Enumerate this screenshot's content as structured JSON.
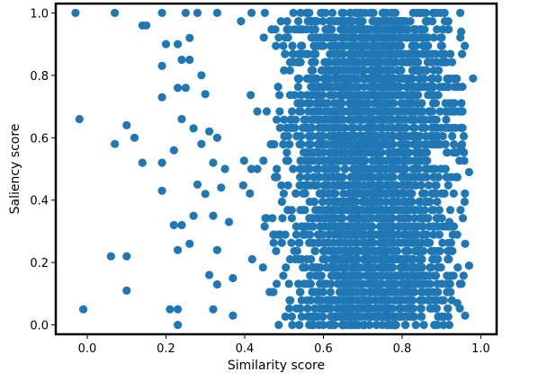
{
  "chart_data": {
    "type": "scatter",
    "title": "",
    "xlabel": "Similarity score",
    "ylabel": "Saliency score",
    "xlim": [
      -0.08,
      1.04
    ],
    "ylim": [
      -0.03,
      1.03
    ],
    "xticks": [
      "0.0",
      "0.2",
      "0.4",
      "0.6",
      "0.8",
      "1.0"
    ],
    "xtick_values": [
      0.0,
      0.2,
      0.4,
      0.6,
      0.8,
      1.0
    ],
    "yticks": [
      "0.0",
      "0.2",
      "0.4",
      "0.6",
      "0.8",
      "1.0"
    ],
    "ytick_values": [
      0.0,
      0.2,
      0.4,
      0.6,
      0.8,
      1.0
    ],
    "grid": false,
    "marker_color": "#1f77b4",
    "points": [
      [
        -0.03,
        1.0
      ],
      [
        0.07,
        1.0
      ],
      [
        0.19,
        1.0
      ],
      [
        0.25,
        1.0
      ],
      [
        0.28,
        1.0
      ],
      [
        0.33,
        1.0
      ],
      [
        0.14,
        0.96
      ],
      [
        0.15,
        0.96
      ],
      [
        0.2,
        0.9
      ],
      [
        0.23,
        0.9
      ],
      [
        0.26,
        0.92
      ],
      [
        0.19,
        0.83
      ],
      [
        0.24,
        0.85
      ],
      [
        0.26,
        0.85
      ],
      [
        0.29,
        0.8
      ],
      [
        0.19,
        0.73
      ],
      [
        0.23,
        0.76
      ],
      [
        0.25,
        0.76
      ],
      [
        0.3,
        0.74
      ],
      [
        -0.02,
        0.66
      ],
      [
        0.1,
        0.64
      ],
      [
        0.24,
        0.66
      ],
      [
        0.27,
        0.63
      ],
      [
        0.31,
        0.62
      ],
      [
        0.07,
        0.58
      ],
      [
        0.12,
        0.6
      ],
      [
        0.22,
        0.56
      ],
      [
        0.29,
        0.58
      ],
      [
        0.33,
        0.6
      ],
      [
        0.14,
        0.52
      ],
      [
        0.19,
        0.52
      ],
      [
        0.32,
        0.52
      ],
      [
        0.35,
        0.5
      ],
      [
        0.19,
        0.43
      ],
      [
        0.28,
        0.45
      ],
      [
        0.3,
        0.42
      ],
      [
        0.34,
        0.44
      ],
      [
        0.22,
        0.32
      ],
      [
        0.24,
        0.32
      ],
      [
        0.27,
        0.35
      ],
      [
        0.32,
        0.35
      ],
      [
        0.36,
        0.33
      ],
      [
        0.06,
        0.22
      ],
      [
        0.1,
        0.22
      ],
      [
        0.23,
        0.24
      ],
      [
        0.26,
        0.26
      ],
      [
        0.33,
        0.24
      ],
      [
        0.1,
        0.11
      ],
      [
        0.31,
        0.16
      ],
      [
        0.33,
        0.13
      ],
      [
        0.37,
        0.15
      ],
      [
        -0.01,
        0.05
      ],
      [
        0.21,
        0.05
      ],
      [
        0.23,
        0.0
      ],
      [
        0.23,
        0.05
      ],
      [
        0.32,
        0.05
      ],
      [
        0.37,
        0.03
      ],
      [
        0.97,
        0.49
      ],
      [
        0.96,
        0.26
      ],
      [
        0.97,
        0.19
      ],
      [
        0.98,
        0.79
      ],
      [
        0.95,
        0.94
      ],
      [
        0.94,
        0.07
      ],
      [
        0.96,
        0.03
      ],
      [
        0.92,
        0.33
      ],
      [
        0.95,
        0.57
      ]
    ],
    "cloud": {
      "x_center": 0.72,
      "x_spread": 0.11,
      "x_range": [
        0.38,
        0.96
      ],
      "y_range": [
        0.0,
        1.0
      ],
      "count": 3200,
      "seed": 7
    }
  }
}
